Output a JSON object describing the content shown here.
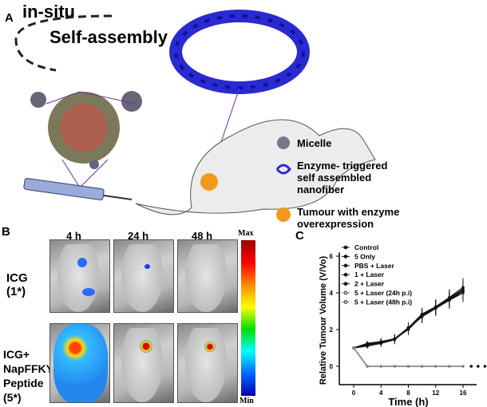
{
  "panel_a": {
    "letter": "A",
    "title_line1": "in-situ",
    "title_line2": "Self-assembly",
    "legend": [
      {
        "icon": "micelle-icon",
        "label": "Micelle"
      },
      {
        "icon": "nanofiber-icon",
        "label": "Enzyme- triggered self assembled nanofiber"
      },
      {
        "icon": "tumour-icon",
        "label": "Tumour with enzyme overexpression",
        "color": "#f39a1e"
      }
    ]
  },
  "panel_b": {
    "letter": "B",
    "columns": [
      "4 h",
      "24 h",
      "48 h"
    ],
    "rows": [
      "ICG (1*)",
      "ICG+ NapFFKY Peptide (5*)"
    ],
    "colorbar": {
      "max": "Max",
      "min": "Min"
    }
  },
  "panel_c": {
    "letter": "C"
  },
  "chart_data": {
    "type": "line",
    "xlabel": "Time (h)",
    "ylabel": "Relative Tumour Volume (V/Vo)",
    "x_ticks": [
      0,
      4,
      8,
      12,
      16
    ],
    "y_ticks": [
      0,
      2,
      4,
      6
    ],
    "xlim": [
      -1,
      18
    ],
    "ylim": [
      -1,
      6
    ],
    "legend_position": "top-left",
    "legend": [
      "Control",
      "5 Only",
      "PBS + Laser",
      "1 + Laser",
      "2 + Laser",
      "5 + Laser (24h p.i)",
      "5 + Laser (48h p.i)"
    ],
    "x": [
      0,
      2,
      4,
      6,
      8,
      10,
      12,
      14,
      16
    ],
    "series": [
      {
        "name": "Control",
        "values": [
          1,
          1.2,
          1.3,
          1.5,
          2.1,
          2.8,
          3.2,
          3.7,
          4.2
        ]
      },
      {
        "name": "5 Only",
        "values": [
          1,
          1.15,
          1.3,
          1.5,
          2.0,
          2.75,
          3.2,
          3.6,
          4.1
        ]
      },
      {
        "name": "PBS + Laser",
        "values": [
          1,
          1.25,
          1.35,
          1.5,
          2.1,
          2.85,
          3.25,
          3.75,
          4.3
        ]
      },
      {
        "name": "1 + Laser",
        "values": [
          1,
          1.1,
          1.25,
          1.45,
          2.05,
          2.7,
          3.15,
          3.6,
          4.0
        ]
      },
      {
        "name": "2 + Laser",
        "values": [
          1,
          1.2,
          1.3,
          1.5,
          2.1,
          2.8,
          3.2,
          3.65,
          4.15
        ]
      },
      {
        "name": "5 + Laser (24h p.i)",
        "values": [
          1,
          0,
          0,
          0,
          0,
          0,
          0,
          0,
          0
        ]
      },
      {
        "name": "5 + Laser (48h p.i)",
        "values": [
          1,
          0,
          0,
          0,
          0,
          0,
          0,
          0,
          0
        ]
      }
    ]
  }
}
